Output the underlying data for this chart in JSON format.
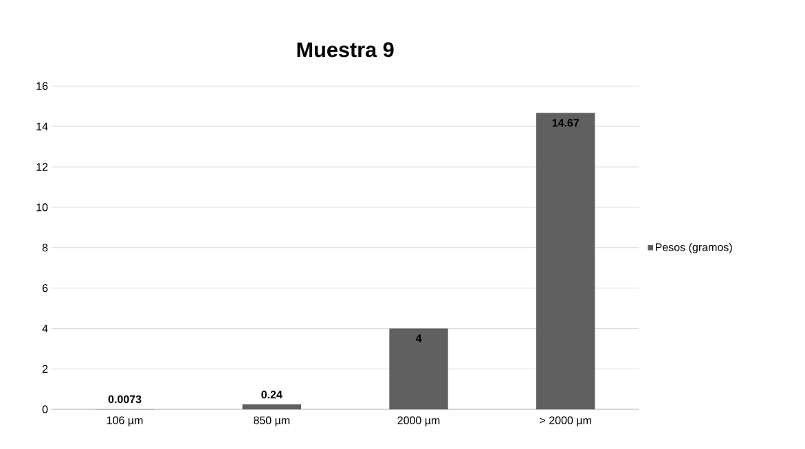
{
  "chart_data": {
    "type": "bar",
    "title": "Muestra 9",
    "categories": [
      "106 µm",
      "850 µm",
      "2000 µm",
      "> 2000 µm"
    ],
    "series": [
      {
        "name": "Pesos (gramos)",
        "color": "#606060",
        "values": [
          0.0073,
          0.24,
          4,
          14.67
        ]
      }
    ],
    "ylim": [
      0,
      16
    ],
    "yticks": [
      0,
      2,
      4,
      6,
      8,
      10,
      12,
      14,
      16
    ],
    "grid": "y",
    "legend": "right",
    "data_labels": true
  }
}
